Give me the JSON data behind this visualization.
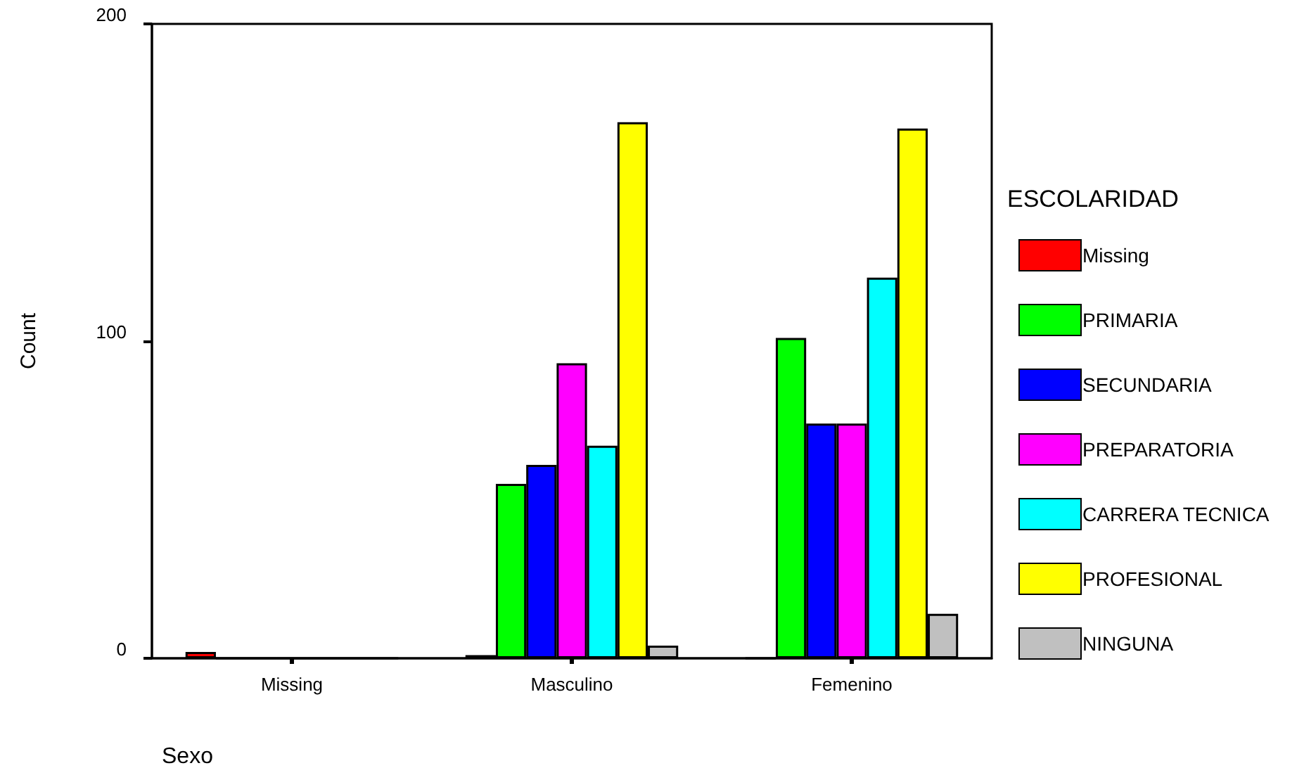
{
  "chart_data": {
    "type": "bar",
    "xlabel": "Sexo",
    "ylabel": "Count",
    "legend_title": "ESCOLARIDAD",
    "categories": [
      "Missing",
      "Masculino",
      "Femenino"
    ],
    "series": [
      {
        "name": "Missing",
        "color": "#ff0000",
        "values": [
          2,
          1,
          0
        ]
      },
      {
        "name": "PRIMARIA",
        "color": "#00ff00",
        "values": [
          0,
          55,
          101
        ]
      },
      {
        "name": "SECUNDARIA",
        "color": "#0000ff",
        "values": [
          0,
          61,
          74
        ]
      },
      {
        "name": "PREPARATORIA",
        "color": "#ff00ff",
        "values": [
          0,
          93,
          74
        ]
      },
      {
        "name": "CARRERA TECNICA",
        "color": "#00ffff",
        "values": [
          0,
          67,
          120
        ]
      },
      {
        "name": "PROFESIONAL",
        "color": "#ffff00",
        "values": [
          0,
          169,
          167
        ]
      },
      {
        "name": "NINGUNA",
        "color": "#c0c0c0",
        "values": [
          0,
          4,
          14
        ]
      }
    ],
    "ylim": [
      0,
      200
    ],
    "yticks": [
      0,
      100,
      200
    ],
    "grid": false,
    "legend": "right"
  }
}
